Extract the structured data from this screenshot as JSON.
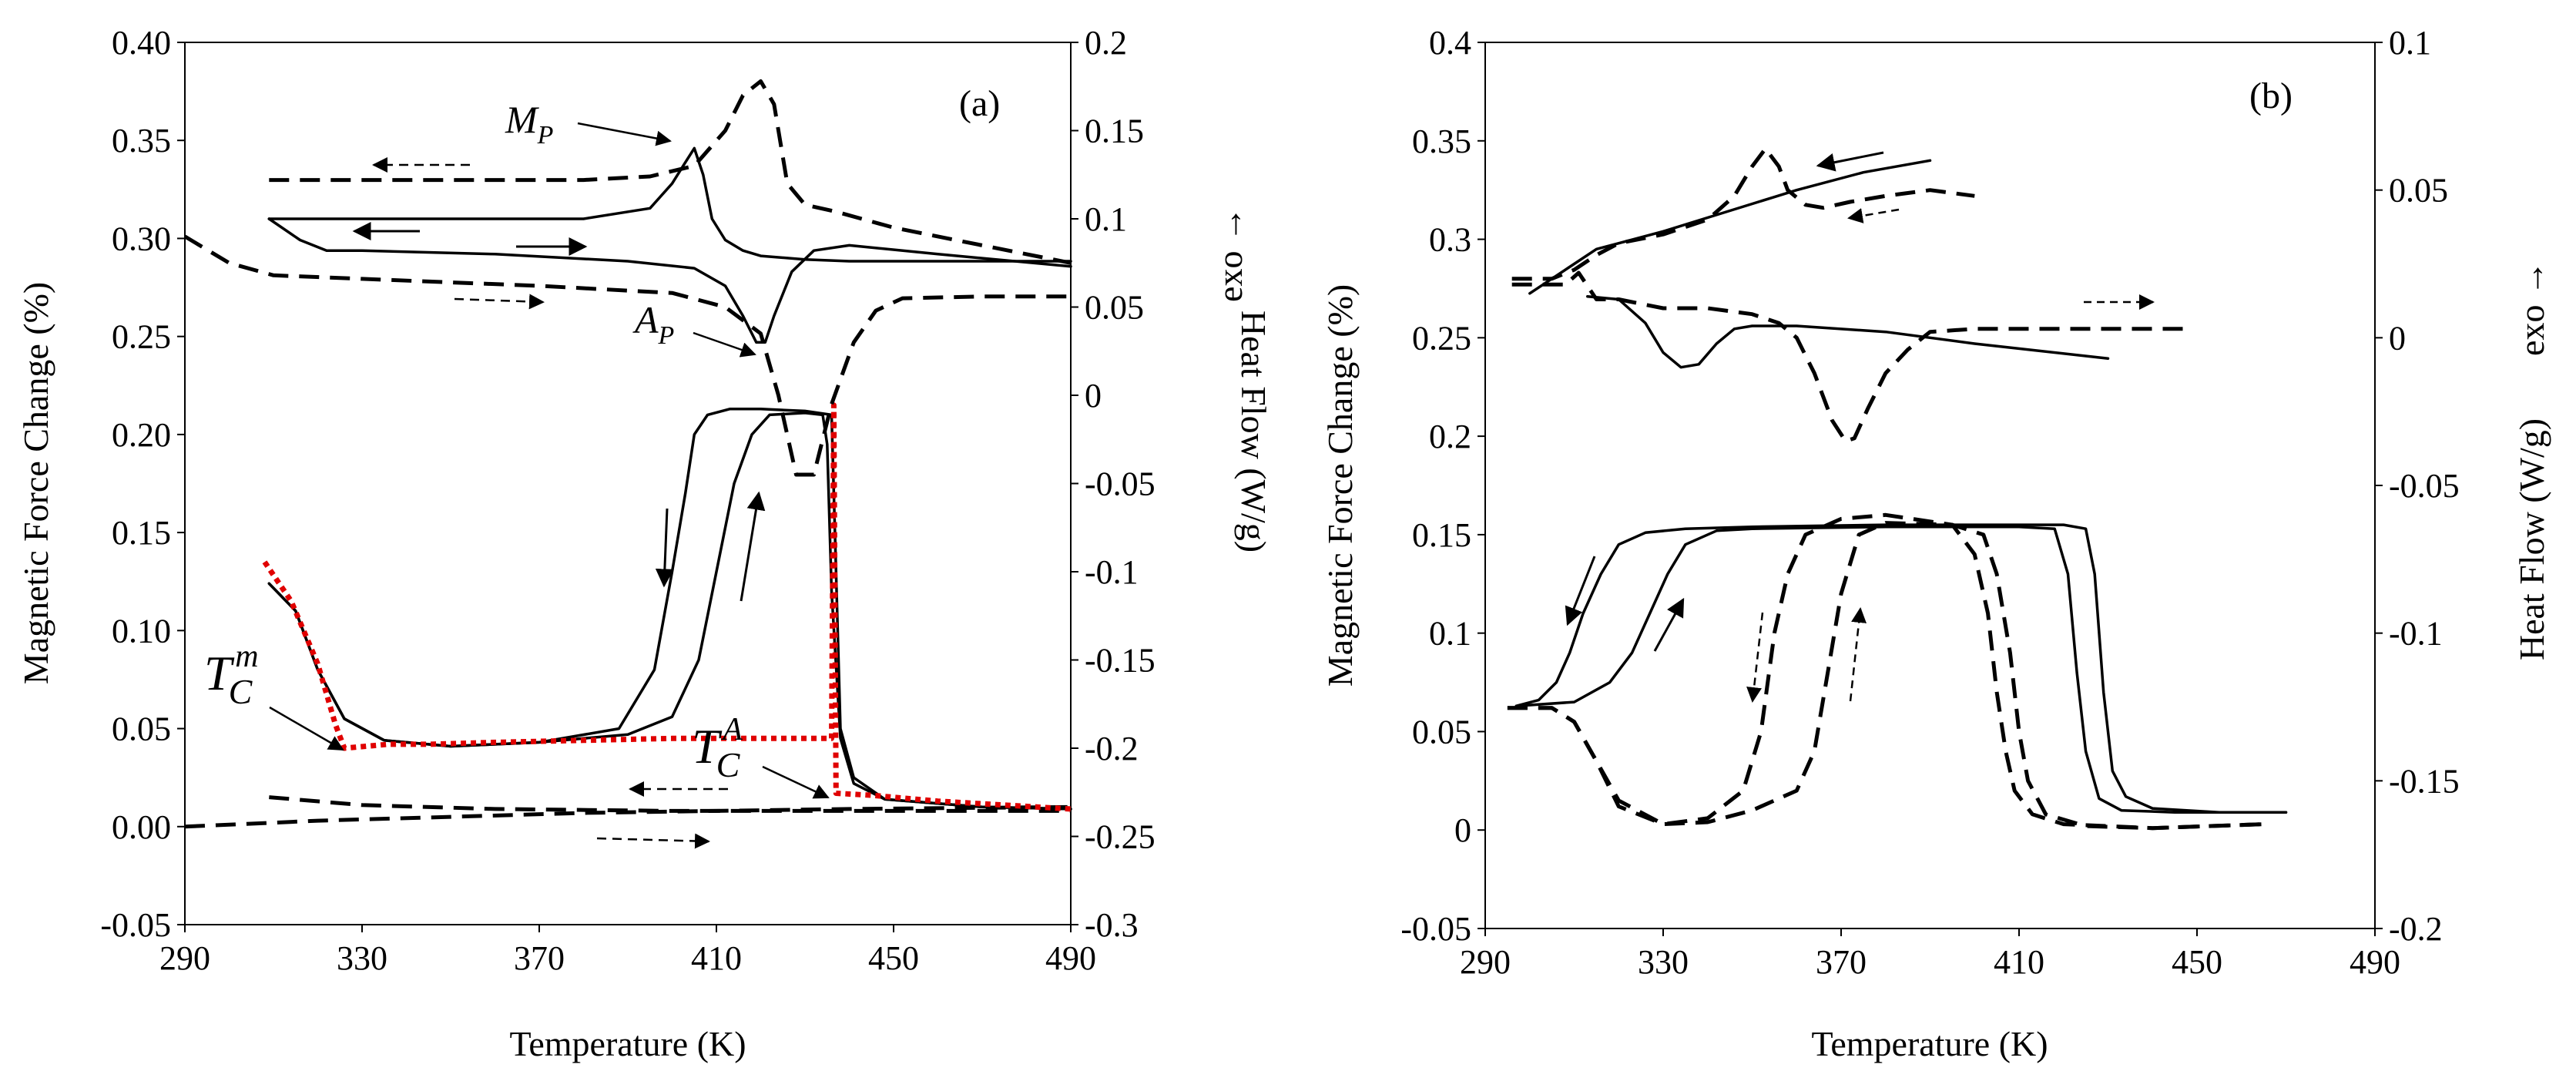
{
  "chart_data": [
    {
      "type": "line",
      "panel_label": "(a)",
      "xlabel": "Temperature (K)",
      "ylabel": "Magnetic Force Change (%)",
      "y2label": "Heat Flow (W/g)",
      "y2note": "exo →",
      "xlim": [
        290,
        490
      ],
      "ylim": [
        -0.05,
        0.4
      ],
      "y2lim": [
        -0.3,
        0.2
      ],
      "xticks": [
        290,
        330,
        370,
        410,
        450,
        490
      ],
      "yticks": [
        "-0.05",
        "0.00",
        "0.05",
        "0.10",
        "0.15",
        "0.20",
        "0.25",
        "0.30",
        "0.35",
        "0.40"
      ],
      "y2ticks": [
        "-0.3",
        "-0.25",
        "-0.2",
        "-0.15",
        "-0.1",
        "-0.05",
        "0",
        "0.05",
        "0.1",
        "0.15",
        "0.2"
      ],
      "annotations": [
        {
          "main": "M",
          "sub": "P",
          "x": 395,
          "y": 0.36
        },
        {
          "main": "A",
          "sub": "P",
          "x": 397,
          "y": 0.255
        },
        {
          "main": "T",
          "sub": "C",
          "sup": "m",
          "x": 300,
          "y": 0.072
        },
        {
          "main": "T",
          "sub": "C",
          "sup": "A",
          "x": 419,
          "y": 0.037
        }
      ],
      "series": [
        {
          "name": "magnetic force cooling",
          "style": "solid",
          "axis": "left",
          "x": [
            309,
            315,
            320,
            326,
            335,
            350,
            370,
            388,
            396,
            400,
            403,
            405,
            408,
            413,
            420,
            430,
            436,
            437,
            438,
            441,
            448,
            470,
            490
          ],
          "y": [
            0.124,
            0.11,
            0.08,
            0.055,
            0.044,
            0.041,
            0.043,
            0.05,
            0.08,
            0.13,
            0.17,
            0.2,
            0.21,
            0.213,
            0.213,
            0.212,
            0.21,
            0.13,
            0.05,
            0.025,
            0.014,
            0.01,
            0.009
          ]
        },
        {
          "name": "magnetic force heating",
          "style": "solid",
          "axis": "left",
          "x": [
            309,
            315,
            320,
            326,
            335,
            350,
            370,
            390,
            400,
            406,
            410,
            414,
            418,
            422,
            430,
            434,
            435,
            436,
            438,
            441,
            448,
            470,
            490
          ],
          "y": [
            0.124,
            0.11,
            0.08,
            0.055,
            0.044,
            0.041,
            0.043,
            0.047,
            0.056,
            0.085,
            0.13,
            0.175,
            0.2,
            0.21,
            0.211,
            0.21,
            0.195,
            0.12,
            0.045,
            0.022,
            0.014,
            0.01,
            0.009
          ]
        },
        {
          "name": "magnetic force dashed (lower)",
          "style": "dashed",
          "axis": "left",
          "x": [
            309,
            330,
            360,
            400,
            440,
            490
          ],
          "y": [
            0.015,
            0.011,
            0.009,
            0.008,
            0.008,
            0.008
          ]
        },
        {
          "name": "magnetic force dashed (baseline)",
          "style": "dashed",
          "axis": "left",
          "x": [
            290,
            320,
            350,
            380,
            410,
            440,
            490
          ],
          "y": [
            0.0,
            0.003,
            0.005,
            0.007,
            0.008,
            0.009,
            0.01
          ]
        },
        {
          "name": "Tc fit (red dotted)",
          "style": "red-dotted",
          "axis": "left",
          "x": [
            308,
            314,
            320,
            324,
            326,
            336,
            345,
            360,
            380,
            400,
            425,
            436,
            436.5,
            437,
            445,
            460,
            490
          ],
          "y": [
            0.135,
            0.115,
            0.083,
            0.052,
            0.04,
            0.042,
            0.042,
            0.043,
            0.044,
            0.045,
            0.045,
            0.045,
            0.215,
            0.017,
            0.016,
            0.013,
            0.009
          ]
        },
        {
          "name": "heat flow cooling (solid)",
          "style": "solid",
          "axis": "right",
          "x": [
            309,
            318,
            340,
            380,
            395,
            400,
            403,
            405,
            407,
            409,
            412,
            416,
            420,
            430,
            440,
            460,
            490
          ],
          "y": [
            0.1,
            0.1,
            0.1,
            0.1,
            0.106,
            0.12,
            0.132,
            0.14,
            0.125,
            0.1,
            0.088,
            0.082,
            0.079,
            0.077,
            0.076,
            0.076,
            0.076
          ]
        },
        {
          "name": "heat flow heating (solid)",
          "style": "solid",
          "axis": "right",
          "x": [
            309,
            316,
            322,
            330,
            360,
            390,
            405,
            412,
            416,
            419,
            421,
            423,
            427,
            432,
            440,
            460,
            490
          ],
          "y": [
            0.1,
            0.088,
            0.082,
            0.082,
            0.08,
            0.076,
            0.072,
            0.062,
            0.045,
            0.03,
            0.03,
            0.045,
            0.07,
            0.082,
            0.085,
            0.08,
            0.073
          ]
        },
        {
          "name": "heat flow cooling (dashed)",
          "style": "dashed",
          "axis": "right",
          "x": [
            309,
            340,
            380,
            395,
            405,
            412,
            416,
            420,
            423,
            426,
            430,
            437,
            450,
            470,
            490
          ],
          "y": [
            0.122,
            0.122,
            0.122,
            0.124,
            0.13,
            0.15,
            0.17,
            0.178,
            0.165,
            0.12,
            0.108,
            0.104,
            0.095,
            0.085,
            0.075
          ]
        },
        {
          "name": "heat flow heating (dashed)",
          "style": "dashed",
          "axis": "right",
          "x": [
            290,
            300,
            310,
            330,
            370,
            400,
            412,
            420,
            424,
            428,
            432,
            436,
            441,
            446,
            452,
            470,
            490
          ],
          "y": [
            0.09,
            0.075,
            0.068,
            0.066,
            0.062,
            0.058,
            0.05,
            0.035,
            0.0,
            -0.045,
            -0.045,
            -0.005,
            0.03,
            0.048,
            0.055,
            0.056,
            0.056
          ]
        }
      ]
    },
    {
      "type": "line",
      "panel_label": "(b)",
      "xlabel": "Temperature (K)",
      "ylabel": "Magnetic Force Change (%)",
      "y2label": "Heat Flow (W/g)",
      "y2note": "exo →",
      "xlim": [
        290,
        490
      ],
      "ylim": [
        -0.05,
        0.4
      ],
      "y2lim": [
        -0.2,
        0.1
      ],
      "xticks": [
        290,
        330,
        370,
        410,
        450,
        490
      ],
      "yticks": [
        "-0.05",
        "0",
        "0.05",
        "0.1",
        "0.15",
        "0.2",
        "0.25",
        "0.3",
        "0.35",
        "0.4"
      ],
      "y2ticks": [
        "-0.2",
        "-0.15",
        "-0.1",
        "-0.05",
        "0",
        "0.05",
        "0.1"
      ],
      "series": [
        {
          "name": "magnetic force cooling (solid)",
          "style": "solid",
          "axis": "left",
          "x": [
            297,
            302,
            306,
            309,
            312,
            316,
            320,
            326,
            335,
            350,
            380,
            410,
            420,
            425,
            427,
            429,
            431,
            434,
            440,
            455,
            470
          ],
          "y": [
            0.063,
            0.066,
            0.075,
            0.09,
            0.11,
            0.13,
            0.145,
            0.151,
            0.153,
            0.154,
            0.155,
            0.155,
            0.155,
            0.153,
            0.13,
            0.07,
            0.03,
            0.017,
            0.011,
            0.009,
            0.009
          ]
        },
        {
          "name": "magnetic force heating (solid)",
          "style": "solid",
          "axis": "left",
          "x": [
            297,
            310,
            318,
            323,
            327,
            331,
            335,
            342,
            350,
            380,
            410,
            418,
            421,
            423,
            425,
            428,
            433,
            445,
            470
          ],
          "y": [
            0.063,
            0.065,
            0.075,
            0.09,
            0.11,
            0.13,
            0.145,
            0.152,
            0.153,
            0.154,
            0.154,
            0.153,
            0.13,
            0.08,
            0.04,
            0.016,
            0.01,
            0.009,
            0.009
          ]
        },
        {
          "name": "magnetic force cooling (dashed)",
          "style": "dashed",
          "axis": "left",
          "x": [
            295,
            305,
            310,
            315,
            320,
            330,
            340,
            348,
            352,
            355,
            358,
            362,
            370,
            380,
            395,
            400,
            403,
            405,
            407,
            409,
            413,
            420,
            440,
            465
          ],
          "y": [
            0.062,
            0.062,
            0.055,
            0.035,
            0.015,
            0.003,
            0.006,
            0.02,
            0.05,
            0.1,
            0.13,
            0.15,
            0.158,
            0.16,
            0.155,
            0.14,
            0.11,
            0.07,
            0.04,
            0.02,
            0.008,
            0.003,
            0.001,
            0.003
          ]
        },
        {
          "name": "magnetic force heating (dashed)",
          "style": "dashed",
          "axis": "left",
          "x": [
            295,
            305,
            310,
            315,
            320,
            330,
            340,
            350,
            360,
            364,
            367,
            370,
            374,
            380,
            395,
            402,
            405,
            408,
            410,
            412,
            416,
            425,
            440,
            465
          ],
          "y": [
            0.062,
            0.062,
            0.055,
            0.035,
            0.012,
            0.003,
            0.004,
            0.01,
            0.02,
            0.04,
            0.08,
            0.12,
            0.15,
            0.156,
            0.155,
            0.15,
            0.13,
            0.09,
            0.05,
            0.025,
            0.008,
            0.002,
            0.001,
            0.003
          ]
        },
        {
          "name": "heat flow cooling (solid)",
          "style": "solid",
          "axis": "right",
          "x": [
            300,
            305,
            310,
            315,
            320,
            330,
            345,
            360,
            375,
            390
          ],
          "y": [
            0.015,
            0.02,
            0.025,
            0.03,
            0.032,
            0.036,
            0.043,
            0.05,
            0.056,
            0.06
          ]
        },
        {
          "name": "heat flow heating (solid)",
          "style": "solid",
          "axis": "right",
          "x": [
            313,
            320,
            326,
            330,
            334,
            338,
            342,
            346,
            350,
            360,
            380,
            400,
            430
          ],
          "y": [
            0.014,
            0.013,
            0.005,
            -0.005,
            -0.01,
            -0.009,
            -0.002,
            0.003,
            0.004,
            0.004,
            0.002,
            -0.002,
            -0.007
          ]
        },
        {
          "name": "heat flow cooling (dashed)",
          "style": "dashed",
          "axis": "right",
          "x": [
            296,
            305,
            310,
            315,
            320,
            330,
            340,
            346,
            350,
            353,
            356,
            358,
            362,
            366,
            372,
            380,
            390,
            400
          ],
          "y": [
            0.02,
            0.02,
            0.023,
            0.028,
            0.032,
            0.035,
            0.04,
            0.048,
            0.058,
            0.064,
            0.058,
            0.05,
            0.045,
            0.044,
            0.046,
            0.048,
            0.05,
            0.048
          ]
        },
        {
          "name": "heat flow heating (dashed)",
          "style": "dashed",
          "axis": "right",
          "x": [
            296,
            305,
            308,
            311,
            315,
            320,
            330,
            340,
            350,
            356,
            360,
            364,
            368,
            371,
            373,
            376,
            380,
            385,
            390,
            400,
            420,
            449
          ],
          "y": [
            0.018,
            0.018,
            0.018,
            0.022,
            0.013,
            0.013,
            0.01,
            0.01,
            0.008,
            0.005,
            0.0,
            -0.012,
            -0.028,
            -0.035,
            -0.034,
            -0.024,
            -0.012,
            -0.004,
            0.002,
            0.003,
            0.003,
            0.003
          ]
        }
      ]
    }
  ]
}
